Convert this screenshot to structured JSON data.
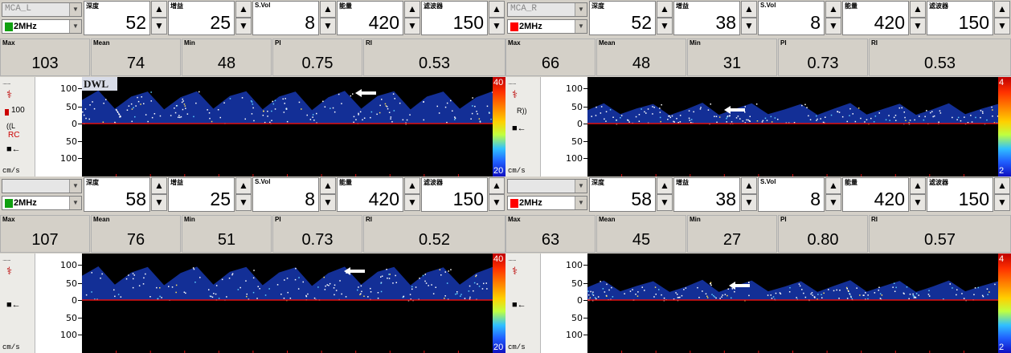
{
  "param_labels": [
    "深度",
    "增益",
    "S.Vol",
    "能量",
    "滤波器"
  ],
  "stat_labels": [
    "Max",
    "Mean",
    "Min",
    "PI",
    "RI"
  ],
  "spinner_glyphs": {
    "up": "▲",
    "down": "▼",
    "dropdown": "▼"
  },
  "panels": [
    {
      "vessel": "MCA_L",
      "freq": "2MHz",
      "freq_color": "#10a010",
      "params": [
        "52",
        "25",
        "8",
        "420",
        "150"
      ],
      "stats": [
        "103",
        "74",
        "48",
        "0.75",
        "0.53"
      ],
      "axis_ticks": [
        "100",
        "50",
        "0",
        "50",
        "100"
      ],
      "unit": "cm/s",
      "colorbar": [
        "40",
        "20"
      ],
      "side": {
        "dots": "........",
        "probe": "⚕",
        "t100": "100",
        "tL": "((L",
        "tRC": "RC",
        "arrow": "■←"
      },
      "logo": "DWL",
      "velocity_points": [
        70,
        98,
        44,
        80,
        95,
        42,
        78,
        96,
        44,
        82,
        96,
        42,
        80,
        95,
        40,
        78,
        97,
        44,
        82,
        96,
        42,
        80,
        95,
        44,
        78,
        96
      ],
      "markers": {
        "white_arrow": true
      }
    },
    {
      "vessel": "MCA_R",
      "freq": "2MHz",
      "freq_color": "#ff0000",
      "params": [
        "52",
        "38",
        "8",
        "420",
        "150"
      ],
      "stats": [
        "66",
        "48",
        "31",
        "0.73",
        "0.53"
      ],
      "axis_ticks": [
        "100",
        "50",
        "0",
        "50",
        "100"
      ],
      "unit": "cm/s",
      "colorbar": [
        "4",
        "2"
      ],
      "side": {
        "dots": "........",
        "probe": "⚕",
        "tR": "R))",
        "arrow": "■←"
      },
      "velocity_points": [
        40,
        60,
        28,
        45,
        58,
        25,
        42,
        62,
        26,
        44,
        60,
        28,
        42,
        58,
        26,
        44,
        61,
        27,
        43,
        59,
        26,
        42,
        60,
        28,
        44,
        58
      ],
      "markers": {
        "white_arrow": true
      }
    },
    {
      "vessel": "",
      "freq": "2MHz",
      "freq_color": "#10a010",
      "params": [
        "58",
        "25",
        "8",
        "420",
        "150"
      ],
      "stats": [
        "107",
        "76",
        "51",
        "0.73",
        "0.52"
      ],
      "axis_ticks": [
        "100",
        "50",
        "0",
        "50",
        "100"
      ],
      "unit": "cm/s",
      "colorbar": [
        "40",
        "20"
      ],
      "side": {
        "dots": "........",
        "probe": "⚕",
        "arrow": "■←"
      },
      "velocity_points": [
        72,
        100,
        46,
        82,
        98,
        44,
        80,
        99,
        46,
        84,
        98,
        44,
        82,
        97,
        42,
        80,
        99,
        46,
        84,
        98,
        44,
        82,
        97,
        46,
        80,
        98
      ],
      "markers": {
        "white_arrow": true
      }
    },
    {
      "vessel": "",
      "freq": "2MHz",
      "freq_color": "#ff0000",
      "params": [
        "58",
        "38",
        "8",
        "420",
        "150"
      ],
      "stats": [
        "63",
        "45",
        "27",
        "0.80",
        "0.57"
      ],
      "axis_ticks": [
        "100",
        "50",
        "0",
        "50",
        "100"
      ],
      "unit": "cm/s",
      "colorbar": [
        "4",
        "2"
      ],
      "side": {
        "dots": "........",
        "probe": "⚕",
        "arrow": "■←"
      },
      "velocity_points": [
        38,
        58,
        26,
        42,
        56,
        24,
        40,
        60,
        24,
        42,
        58,
        26,
        40,
        56,
        24,
        42,
        59,
        25,
        41,
        57,
        24,
        40,
        58,
        26,
        42,
        56
      ],
      "markers": {
        "white_arrow": true
      }
    }
  ]
}
